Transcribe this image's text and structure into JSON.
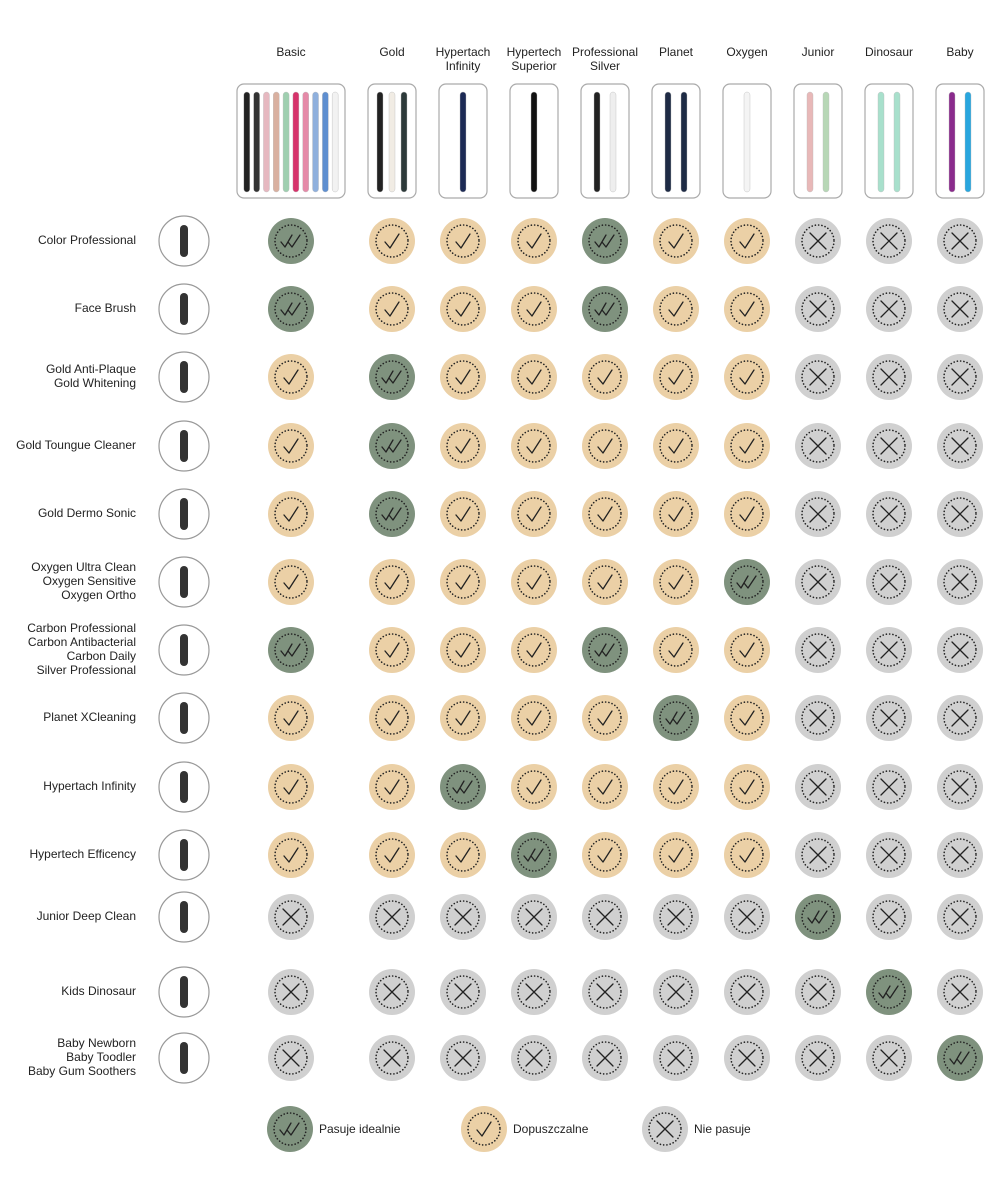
{
  "table": {
    "columns": [
      [
        "Basic"
      ],
      [
        "Gold"
      ],
      [
        "Hypertach",
        "Infinity"
      ],
      [
        "Hypertech",
        "Superior"
      ],
      [
        "Professional",
        "Silver"
      ],
      [
        "Planet"
      ],
      [
        "Oxygen"
      ],
      [
        "Junior"
      ],
      [
        "Dinosaur"
      ],
      [
        "Baby"
      ]
    ],
    "rows": [
      {
        "label": [
          "Color Professional"
        ],
        "cells": [
          0,
          1,
          1,
          1,
          0,
          1,
          1,
          2,
          2,
          2
        ]
      },
      {
        "label": [
          "Face Brush"
        ],
        "cells": [
          0,
          1,
          1,
          1,
          0,
          1,
          1,
          2,
          2,
          2
        ]
      },
      {
        "label": [
          "Gold Anti-Plaque",
          "Gold Whitening"
        ],
        "cells": [
          1,
          0,
          1,
          1,
          1,
          1,
          1,
          2,
          2,
          2
        ]
      },
      {
        "label": [
          "Gold Toungue Cleaner"
        ],
        "cells": [
          1,
          0,
          1,
          1,
          1,
          1,
          1,
          2,
          2,
          2
        ]
      },
      {
        "label": [
          "Gold Dermo Sonic"
        ],
        "cells": [
          1,
          0,
          1,
          1,
          1,
          1,
          1,
          2,
          2,
          2
        ]
      },
      {
        "label": [
          "Oxygen Ultra Clean",
          "Oxygen Sensitive",
          "Oxygen Ortho"
        ],
        "cells": [
          1,
          1,
          1,
          1,
          1,
          1,
          0,
          2,
          2,
          2
        ]
      },
      {
        "label": [
          "Carbon Professional",
          "Carbon Antibacterial",
          "Carbon Daily",
          "Silver Professional"
        ],
        "cells": [
          0,
          1,
          1,
          1,
          0,
          1,
          1,
          2,
          2,
          2
        ]
      },
      {
        "label": [
          "Planet XCleaning"
        ],
        "cells": [
          1,
          1,
          1,
          1,
          1,
          0,
          1,
          2,
          2,
          2
        ]
      },
      {
        "label": [
          "Hypertach Infinity"
        ],
        "cells": [
          1,
          1,
          0,
          1,
          1,
          1,
          1,
          2,
          2,
          2
        ]
      },
      {
        "label": [
          "Hypertech Efficency"
        ],
        "cells": [
          1,
          1,
          1,
          0,
          1,
          1,
          1,
          2,
          2,
          2
        ]
      },
      {
        "label": [
          "Junior Deep Clean"
        ],
        "cells": [
          2,
          2,
          2,
          2,
          2,
          2,
          2,
          0,
          2,
          2
        ]
      },
      {
        "label": [
          "Kids Dinosaur"
        ],
        "cells": [
          2,
          2,
          2,
          2,
          2,
          2,
          2,
          2,
          0,
          2
        ]
      },
      {
        "label": [
          "Baby Newborn",
          "Baby Toodler",
          "Baby Gum Soothers"
        ],
        "cells": [
          2,
          2,
          2,
          2,
          2,
          2,
          2,
          2,
          2,
          0
        ]
      }
    ],
    "legend": [
      "Pasuje idealnie",
      "Dopuszczalne",
      "Nie pasuje"
    ]
  }
}
